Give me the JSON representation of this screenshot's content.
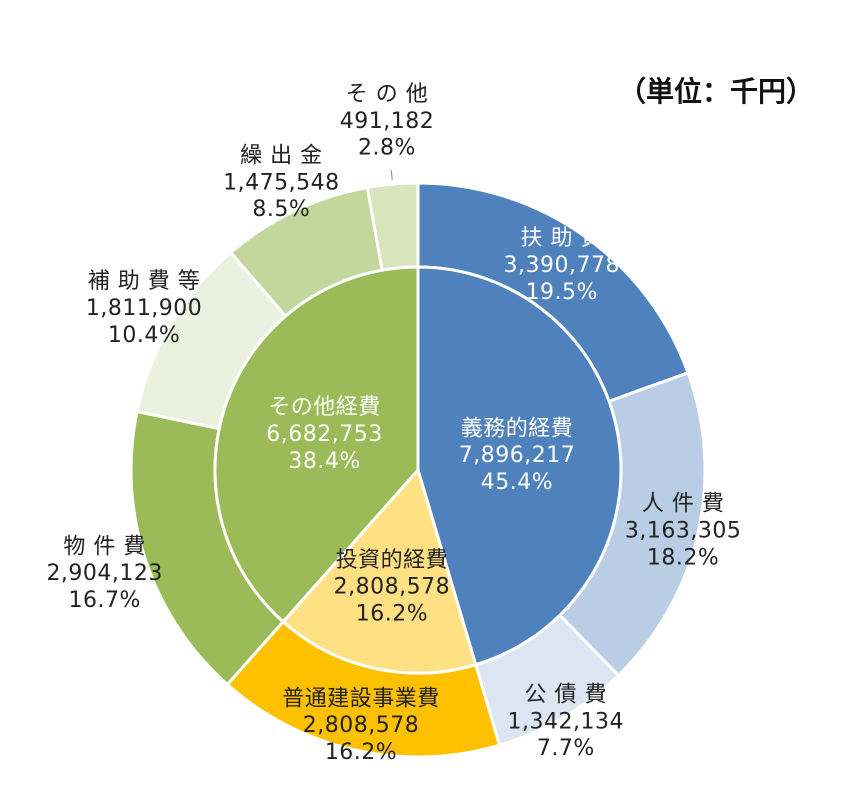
{
  "unit_label": "（単位：千円）",
  "chart_data": {
    "type": "pie",
    "variant": "donut-nested",
    "inner": [
      {
        "name": "義務的経費",
        "value": 7896217,
        "percent": "45.4%",
        "color": "#4f81bd",
        "label_color": "#ffffff"
      },
      {
        "name": "投資的経費",
        "value": 2808578,
        "percent": "16.2%",
        "color": "#ffe083",
        "label_color": "#222222"
      },
      {
        "name": "その他経費",
        "value": 6682753,
        "percent": "38.4%",
        "color": "#9bbb59",
        "label_color": "#ffffff"
      }
    ],
    "outer": [
      {
        "name": "扶 助 費",
        "value": 3390778,
        "percent": "19.5%",
        "color": "#4f81bd",
        "label_color": "#ffffff"
      },
      {
        "name": "人 件 費",
        "value": 3163305,
        "percent": "18.2%",
        "color": "#b9cde5",
        "label_color": "#222222"
      },
      {
        "name": "公 債 費",
        "value": 1342134,
        "percent": "7.7%",
        "color": "#dce6f2",
        "label_color": "#222222"
      },
      {
        "name": "普通建設事業費",
        "value": 2808578,
        "percent": "16.2%",
        "color": "#ffc000",
        "label_color": "#222222"
      },
      {
        "name": "物 件 費",
        "value": 2904123,
        "percent": "16.7%",
        "color": "#9bbb59",
        "label_color": "#222222"
      },
      {
        "name": "補 助 費 等",
        "value": 1811900,
        "percent": "10.4%",
        "color": "#ebf1de",
        "label_color": "#222222"
      },
      {
        "name": "繰 出 金",
        "value": 1475548,
        "percent": "8.5%",
        "color": "#c3d69b",
        "label_color": "#222222"
      },
      {
        "name": "そ の 他",
        "value": 491182,
        "percent": "2.8%",
        "color": "#d7e4bc",
        "label_color": "#222222"
      }
    ]
  }
}
